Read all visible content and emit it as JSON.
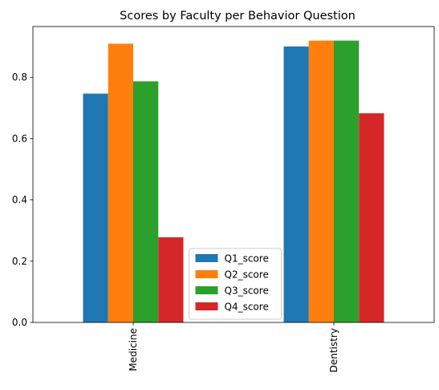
{
  "chart_data": {
    "type": "bar",
    "title": "Scores by Faculty per Behavior Question",
    "xlabel": "",
    "ylabel": "",
    "categories": [
      "Medicine",
      "Dentistry"
    ],
    "series": [
      {
        "name": "Q1_score",
        "color": "#1f77b4",
        "values": [
          0.747,
          0.901
        ]
      },
      {
        "name": "Q2_score",
        "color": "#ff7f0e",
        "values": [
          0.91,
          0.92
        ]
      },
      {
        "name": "Q3_score",
        "color": "#2ca02c",
        "values": [
          0.787,
          0.92
        ]
      },
      {
        "name": "Q4_score",
        "color": "#d62728",
        "values": [
          0.278,
          0.683
        ]
      }
    ],
    "ylim": [
      0,
      0.966
    ],
    "yticks": [
      0.0,
      0.2,
      0.4,
      0.6,
      0.8
    ],
    "ytick_labels": [
      "0.0",
      "0.2",
      "0.4",
      "0.6",
      "0.8"
    ],
    "x_tick_rotation": "vertical",
    "grid": false,
    "legend_position": "lower center"
  }
}
